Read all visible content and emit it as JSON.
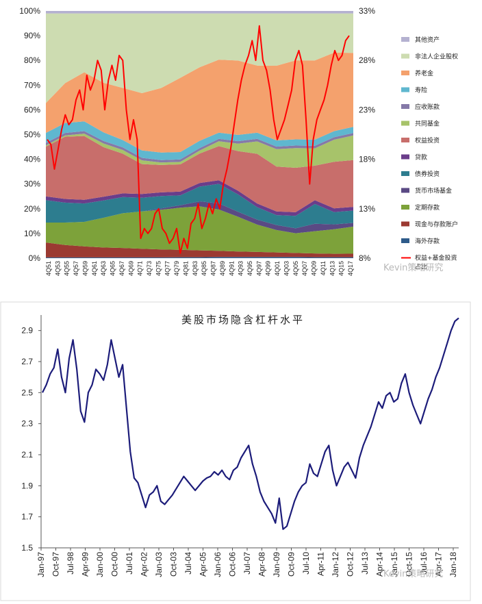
{
  "watermark": "Kevin策略研究",
  "chart_data": [
    {
      "type": "area",
      "title": "",
      "stacking": "percent",
      "x_tick_labels": [
        "4Q51",
        "4Q53",
        "4Q55",
        "4Q57",
        "4Q59",
        "4Q61",
        "4Q63",
        "4Q65",
        "4Q67",
        "4Q69",
        "4Q71",
        "4Q73",
        "4Q75",
        "4Q77",
        "4Q79",
        "4Q81",
        "4Q83",
        "4Q85",
        "4Q87",
        "4Q89",
        "4Q91",
        "4Q93",
        "4Q95",
        "4Q97",
        "4Q99",
        "4Q01",
        "4Q03",
        "4Q05",
        "4Q07",
        "4Q09",
        "4Q11",
        "4Q13",
        "4Q15",
        "4Q17"
      ],
      "y_left_ticks": [
        "0%",
        "10%",
        "20%",
        "30%",
        "40%",
        "50%",
        "60%",
        "70%",
        "80%",
        "90%",
        "100%"
      ],
      "y_right_ticks": [
        "8%",
        "13%",
        "18%",
        "23%",
        "28%",
        "33%"
      ],
      "ylim_left": [
        0,
        100
      ],
      "ylim_right": [
        8,
        33
      ],
      "series": [
        {
          "name": "海外存款",
          "color": "#2e5b8a",
          "values": [
            0.3,
            0.3,
            0.3,
            0.3,
            0.3,
            0.3,
            0.3,
            0.4,
            0.4,
            0.5,
            0.5,
            0.5,
            0.5,
            0.5,
            0.4,
            0.4,
            0.4
          ]
        },
        {
          "name": "现金与存款账户",
          "color": "#9b3a32",
          "values": [
            6,
            5,
            4.5,
            4,
            3.8,
            3.5,
            3.2,
            3,
            2.8,
            2.5,
            2.2,
            2,
            1.8,
            1.6,
            1.5,
            1.4,
            1.4
          ]
        },
        {
          "name": "定期存款",
          "color": "#7da23a",
          "values": [
            8,
            9,
            10,
            12,
            14,
            15,
            16,
            17,
            18,
            17,
            14,
            11,
            9,
            8,
            9,
            10,
            11
          ]
        },
        {
          "name": "货币市场基金",
          "color": "#5a4a84",
          "values": [
            0,
            0,
            0,
            0,
            0,
            0,
            0.5,
            1,
            2,
            2.5,
            2,
            2,
            2,
            2,
            3,
            2,
            1.5
          ]
        },
        {
          "name": "债券投资",
          "color": "#2d7d8f",
          "values": [
            9,
            8,
            7.5,
            7,
            6.5,
            5.5,
            5,
            4,
            6,
            8,
            7,
            5,
            4,
            5,
            8,
            5,
            5
          ]
        },
        {
          "name": "贷款",
          "color": "#6a3d8a",
          "values": [
            1.5,
            1.5,
            1.5,
            1.5,
            1.5,
            1.5,
            1.5,
            1.5,
            1.5,
            1.5,
            1.5,
            1.5,
            1.5,
            1.5,
            1.5,
            1.5,
            1.5
          ]
        },
        {
          "name": "权益投资",
          "color": "#c86e6b",
          "values": [
            20,
            25,
            26,
            20,
            16,
            12,
            11,
            11,
            12,
            14,
            16,
            20,
            18,
            18,
            14,
            19,
            19
          ]
        },
        {
          "name": "共同基金",
          "color": "#a7c36a",
          "values": [
            0.5,
            0.5,
            1,
            1.5,
            1.5,
            1.5,
            1,
            1,
            1.2,
            2,
            3,
            5,
            7,
            8,
            7,
            9,
            10
          ]
        },
        {
          "name": "应收账款",
          "color": "#8579a8",
          "values": [
            1,
            1,
            1,
            1,
            1,
            1,
            1,
            1,
            1,
            1,
            1,
            1,
            1,
            1,
            1,
            1,
            1
          ]
        },
        {
          "name": "寿险",
          "color": "#5fb7cf",
          "values": [
            4,
            4,
            4,
            3.5,
            3,
            3,
            3,
            3,
            3,
            2.5,
            2.5,
            2.5,
            2.5,
            2.5,
            2.5,
            2.5,
            2.5
          ]
        },
        {
          "name": "养老金",
          "color": "#f4a16d",
          "values": [
            12,
            16,
            20,
            20,
            21,
            23,
            26,
            30,
            30,
            30,
            30,
            27,
            30,
            32,
            32,
            32,
            30
          ]
        },
        {
          "name": "非法人企业股权",
          "color": "#cddcb1",
          "values": [
            36,
            28,
            24,
            28,
            30,
            32,
            30,
            26,
            22,
            19,
            19,
            21,
            21,
            19,
            19,
            16,
            16
          ]
        },
        {
          "name": "其他资产",
          "color": "#b4b1d0",
          "values": [
            1,
            1,
            1,
            1,
            1,
            1,
            1,
            1,
            1,
            1,
            1,
            1,
            1,
            1,
            1,
            1,
            1
          ]
        }
      ],
      "line": {
        "name": "权益+基金投资占比",
        "color": "#ff0000",
        "axis": "right",
        "values": [
          20,
          19.5,
          17,
          19,
          21,
          22.5,
          21.5,
          22,
          24,
          25,
          23,
          26.5,
          25,
          26,
          28,
          27,
          23,
          26,
          27.5,
          26,
          28.5,
          28,
          23,
          20,
          22,
          20,
          10,
          11,
          10.5,
          11,
          12.5,
          13,
          11,
          10.5,
          9.5,
          10,
          11,
          8.5,
          10,
          9,
          11.5,
          12,
          13.5,
          11,
          12,
          13.5,
          12.5,
          14,
          13,
          15.5,
          17,
          19,
          21.5,
          24,
          26,
          27.5,
          28.5,
          30,
          28,
          31.5,
          28,
          27,
          25,
          22,
          20,
          21,
          22,
          23.5,
          25,
          28,
          29,
          27.5,
          22,
          15.5,
          20,
          22,
          23,
          24,
          25.5,
          27.5,
          29,
          28,
          28.5,
          30,
          30.5
        ]
      },
      "legend": [
        "其他资产",
        "非法人企业股权",
        "养老金",
        "寿险",
        "应收账款",
        "共同基金",
        "权益投资",
        "贷款",
        "债券投资",
        "货币市场基金",
        "定期存款",
        "现金与存款账户",
        "海外存款",
        "权益+基金投资占比"
      ]
    },
    {
      "type": "line",
      "title": "美股市场隐含杠杆水平",
      "x_tick_labels": [
        "Jan-97",
        "Oct-97",
        "Jul-98",
        "Apr-99",
        "Jan-00",
        "Oct-00",
        "Jul-01",
        "Apr-02",
        "Jan-03",
        "Oct-03",
        "Jul-04",
        "Apr-05",
        "Jan-06",
        "Oct-06",
        "Jul-07",
        "Apr-08",
        "Jan-09",
        "Oct-09",
        "Jul-10",
        "Apr-11",
        "Jan-12",
        "Oct-12",
        "Jul-13",
        "Apr-14",
        "Jan-15",
        "Oct-15",
        "Jul-16",
        "Apr-17",
        "Jan-18"
      ],
      "y_ticks": [
        "1.5",
        "1.7",
        "1.9",
        "2.1",
        "2.3",
        "2.5",
        "2.7",
        "2.9"
      ],
      "ylim": [
        1.5,
        3.0
      ],
      "series": [
        {
          "name": "隐含杠杆水平",
          "color": "#1c1c7a",
          "values": [
            2.5,
            2.55,
            2.62,
            2.66,
            2.78,
            2.6,
            2.5,
            2.72,
            2.84,
            2.65,
            2.38,
            2.31,
            2.5,
            2.55,
            2.65,
            2.62,
            2.58,
            2.68,
            2.84,
            2.72,
            2.6,
            2.68,
            2.4,
            2.12,
            1.95,
            1.92,
            1.84,
            1.76,
            1.84,
            1.86,
            1.9,
            1.8,
            1.78,
            1.81,
            1.84,
            1.88,
            1.92,
            1.96,
            1.93,
            1.9,
            1.87,
            1.9,
            1.93,
            1.95,
            1.96,
            1.99,
            1.97,
            2.0,
            1.96,
            1.94,
            2.0,
            2.02,
            2.08,
            2.12,
            2.16,
            2.04,
            1.96,
            1.86,
            1.8,
            1.76,
            1.72,
            1.66,
            1.82,
            1.62,
            1.64,
            1.72,
            1.8,
            1.86,
            1.9,
            1.92,
            2.04,
            1.98,
            1.96,
            2.04,
            2.12,
            2.16,
            2.0,
            1.9,
            1.96,
            2.02,
            2.05,
            2.0,
            1.95,
            2.08,
            2.16,
            2.22,
            2.28,
            2.36,
            2.44,
            2.4,
            2.48,
            2.5,
            2.44,
            2.46,
            2.56,
            2.62,
            2.5,
            2.42,
            2.36,
            2.3,
            2.38,
            2.46,
            2.52,
            2.6,
            2.66,
            2.74,
            2.82,
            2.9,
            2.96,
            2.98
          ]
        }
      ]
    }
  ]
}
